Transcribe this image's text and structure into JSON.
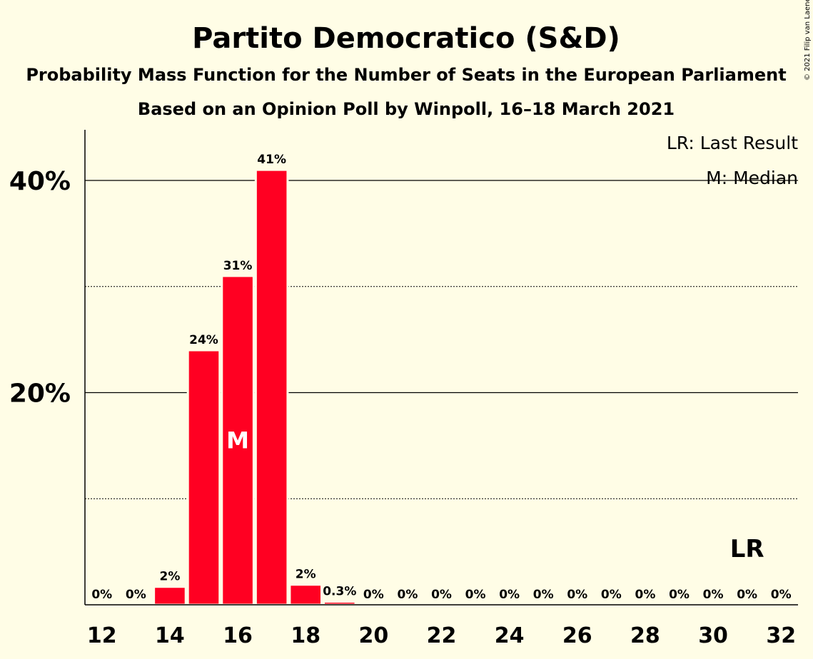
{
  "chart_data": {
    "type": "bar",
    "title": "Partito Democratico (S&D)",
    "subtitle": "Probability Mass Function for the Number of Seats in the European Parliament",
    "subtitle2": "Based on an Opinion Poll by Winpoll, 16–18 March 2021",
    "copyright": "© 2021 Filip van Laenen",
    "legend": [
      "LR: Last Result",
      "M: Median"
    ],
    "legend_placement": "top-right",
    "x": [
      12,
      13,
      14,
      15,
      16,
      17,
      18,
      19,
      20,
      21,
      22,
      23,
      24,
      25,
      26,
      27,
      28,
      29,
      30,
      31,
      32
    ],
    "values": [
      0,
      0,
      1.7,
      24,
      31,
      41,
      1.9,
      0.3,
      0,
      0,
      0,
      0,
      0,
      0,
      0,
      0,
      0,
      0,
      0,
      0,
      0
    ],
    "labels": [
      "0%",
      "0%",
      "2%",
      "24%",
      "31%",
      "41%",
      "2%",
      "0.3%",
      "0%",
      "0%",
      "0%",
      "0%",
      "0%",
      "0%",
      "0%",
      "0%",
      "0%",
      "0%",
      "0%",
      "0%",
      "0%"
    ],
    "xticks": [
      "12",
      "14",
      "16",
      "18",
      "20",
      "22",
      "24",
      "26",
      "28",
      "30",
      "32"
    ],
    "ytick_labels": [
      "20%",
      "40%"
    ],
    "ylim": [
      0,
      45
    ],
    "grid": "solid lines at 20% and 40%, dotted lines at 10% and 30%",
    "median_seat": 16,
    "median_label": "M",
    "last_result_seat": 31,
    "last_result_label": "LR",
    "bar_color": "#FF0022"
  }
}
